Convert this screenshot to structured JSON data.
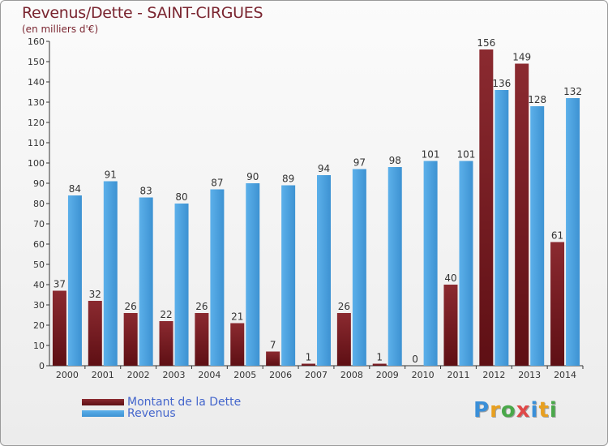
{
  "title": "Revenus/Dette - SAINT-CIRGUES",
  "subtitle": "(en milliers d'€)",
  "legend": {
    "debt_label": "Montant de la Dette",
    "revenue_label": "Revenus"
  },
  "logo": {
    "text": "Proxiti",
    "letters": [
      {
        "ch": "P",
        "color": "#3a8fd8"
      },
      {
        "ch": "r",
        "color": "#e8a020"
      },
      {
        "ch": "o",
        "color": "#4aa84a"
      },
      {
        "ch": "x",
        "color": "#e04848"
      },
      {
        "ch": "i",
        "color": "#3a8fd8"
      },
      {
        "ch": "t",
        "color": "#e8a020"
      },
      {
        "ch": "i",
        "color": "#4aa84a"
      }
    ]
  },
  "colors": {
    "debt": "#7a1e24",
    "revenue": "#4fa6e2",
    "title": "#7a2530",
    "legend_text": "#4466cc"
  },
  "chart_data": {
    "type": "bar",
    "categories": [
      "2000",
      "2001",
      "2002",
      "2003",
      "2004",
      "2005",
      "2006",
      "2007",
      "2008",
      "2009",
      "2010",
      "2011",
      "2012",
      "2013",
      "2014"
    ],
    "series": [
      {
        "name": "Montant de la Dette",
        "values": [
          37,
          32,
          26,
          22,
          26,
          21,
          7,
          1,
          26,
          1,
          0,
          40,
          156,
          149,
          61
        ]
      },
      {
        "name": "Revenus",
        "values": [
          84,
          91,
          83,
          80,
          87,
          90,
          89,
          94,
          97,
          98,
          101,
          101,
          136,
          128,
          132
        ]
      }
    ],
    "ylim": [
      0,
      160
    ],
    "yticks": [
      0,
      10,
      20,
      30,
      40,
      50,
      60,
      70,
      80,
      90,
      100,
      110,
      120,
      130,
      140,
      150,
      160
    ],
    "grid": false,
    "legend_position": "bottom-left"
  }
}
